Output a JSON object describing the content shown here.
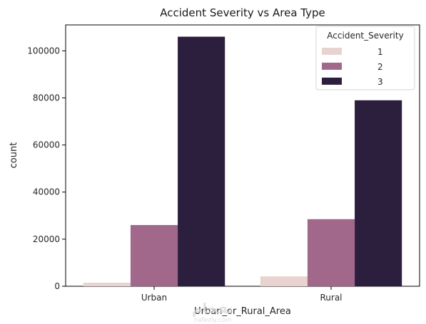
{
  "chart_data": {
    "type": "bar",
    "title": "Accident Severity vs Area Type",
    "xlabel": "Urban_or_Rural_Area",
    "ylabel": "count",
    "categories": [
      "Urban",
      "Rural"
    ],
    "series": [
      {
        "name": "1",
        "values": [
          1500,
          4200
        ],
        "color": "#e8d3d0"
      },
      {
        "name": "2",
        "values": [
          26000,
          28500
        ],
        "color": "#a1688c"
      },
      {
        "name": "3",
        "values": [
          106000,
          79000
        ],
        "color": "#2c1e3d"
      }
    ],
    "ylim": [
      0,
      111000
    ],
    "yticks": [
      0,
      20000,
      40000,
      60000,
      80000,
      100000
    ],
    "legend": {
      "title": "Accident_Severity",
      "placement": "top-right"
    },
    "grid": false
  },
  "watermark": {
    "text": "نفخام",
    "sub": "nafezly.com"
  }
}
